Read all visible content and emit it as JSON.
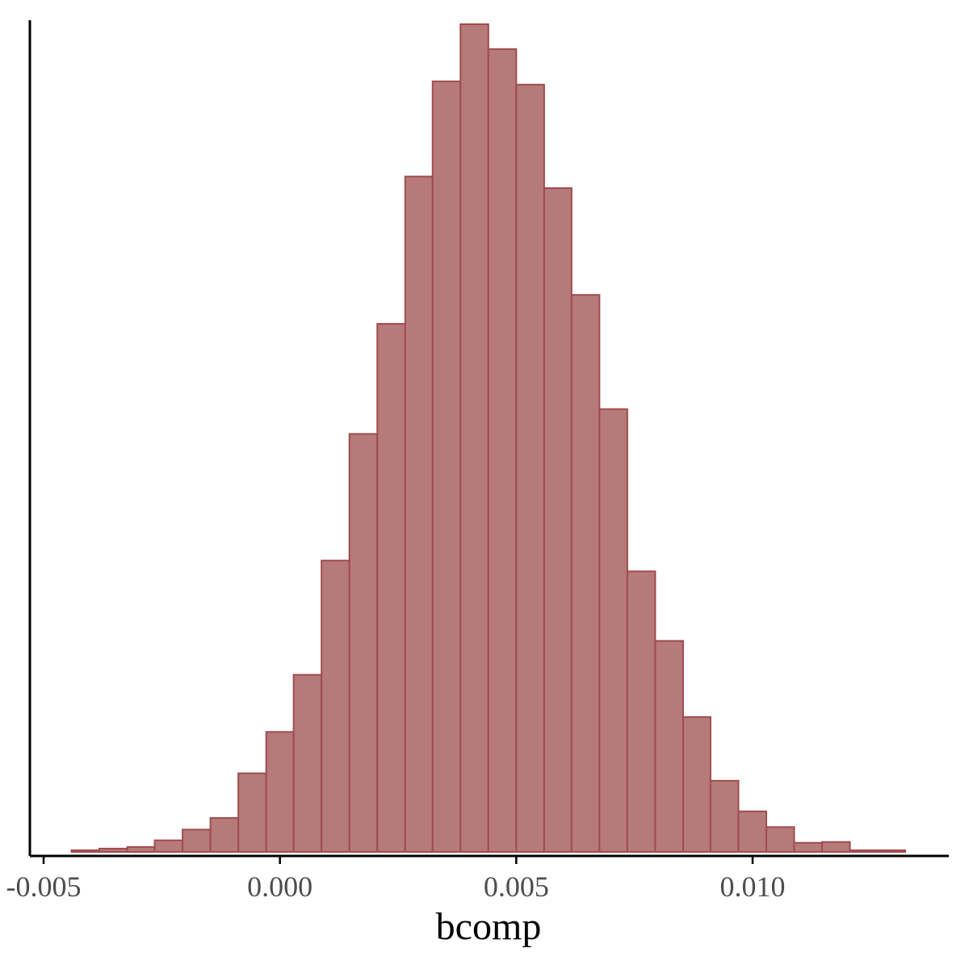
{
  "chart_data": {
    "type": "bar",
    "subtype": "histogram",
    "title": "",
    "xlabel": "bcomp",
    "ylabel": "",
    "xlim": [
      -0.0055,
      0.0142
    ],
    "ylim": [
      0,
      1000
    ],
    "x_ticks": [
      -0.005,
      0.0,
      0.005,
      0.01
    ],
    "x_tick_labels": [
      "-0.005",
      "0.000",
      "0.005",
      "0.010"
    ],
    "y_ticks_shown": false,
    "grid": false,
    "legend": "none",
    "bin_width": 0.000588,
    "bins": [
      {
        "x0": -0.00441,
        "x1": -0.00382,
        "count": 2
      },
      {
        "x0": -0.00382,
        "x1": -0.00323,
        "count": 4
      },
      {
        "x0": -0.00323,
        "x1": -0.00265,
        "count": 6
      },
      {
        "x0": -0.00265,
        "x1": -0.00206,
        "count": 14
      },
      {
        "x0": -0.00206,
        "x1": -0.00147,
        "count": 27
      },
      {
        "x0": -0.00147,
        "x1": -0.00088,
        "count": 41
      },
      {
        "x0": -0.00088,
        "x1": -0.00029,
        "count": 95
      },
      {
        "x0": -0.00029,
        "x1": 0.00029,
        "count": 145
      },
      {
        "x0": 0.00029,
        "x1": 0.00088,
        "count": 214
      },
      {
        "x0": 0.00088,
        "x1": 0.00147,
        "count": 352
      },
      {
        "x0": 0.00147,
        "x1": 0.00206,
        "count": 505
      },
      {
        "x0": 0.00206,
        "x1": 0.00265,
        "count": 638
      },
      {
        "x0": 0.00265,
        "x1": 0.00323,
        "count": 816
      },
      {
        "x0": 0.00323,
        "x1": 0.00382,
        "count": 931
      },
      {
        "x0": 0.00382,
        "x1": 0.00441,
        "count": 1000
      },
      {
        "x0": 0.00441,
        "x1": 0.005,
        "count": 970
      },
      {
        "x0": 0.005,
        "x1": 0.00559,
        "count": 927
      },
      {
        "x0": 0.00559,
        "x1": 0.00617,
        "count": 802
      },
      {
        "x0": 0.00617,
        "x1": 0.00676,
        "count": 673
      },
      {
        "x0": 0.00676,
        "x1": 0.00735,
        "count": 535
      },
      {
        "x0": 0.00735,
        "x1": 0.00794,
        "count": 339
      },
      {
        "x0": 0.00794,
        "x1": 0.00853,
        "count": 255
      },
      {
        "x0": 0.00853,
        "x1": 0.00911,
        "count": 163
      },
      {
        "x0": 0.00911,
        "x1": 0.0097,
        "count": 86
      },
      {
        "x0": 0.0097,
        "x1": 0.01029,
        "count": 49
      },
      {
        "x0": 0.01029,
        "x1": 0.01088,
        "count": 30
      },
      {
        "x0": 0.01088,
        "x1": 0.01147,
        "count": 11
      },
      {
        "x0": 0.01147,
        "x1": 0.01206,
        "count": 12
      },
      {
        "x0": 0.01206,
        "x1": 0.01265,
        "count": 2
      },
      {
        "x0": 0.01265,
        "x1": 0.01323,
        "count": 2
      }
    ],
    "colors": {
      "bar_fill": "#b67a7a",
      "bar_stroke": "#a04b4e",
      "axis": "#000000",
      "tick_text": "#4d4d4d"
    }
  }
}
